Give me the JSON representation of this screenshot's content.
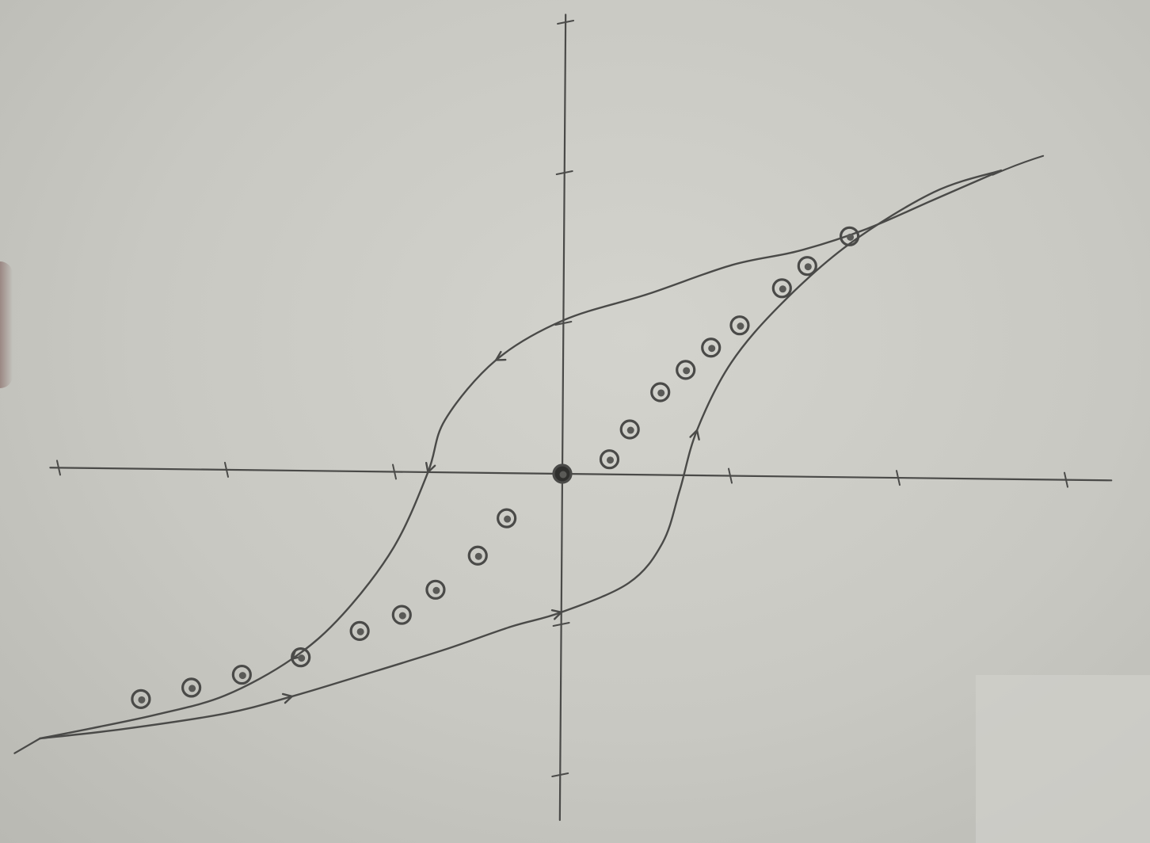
{
  "chart_data": {
    "type": "line",
    "title": "",
    "xlabel": "",
    "ylabel": "",
    "xlim": [
      -3,
      3
    ],
    "ylim": [
      -2,
      3
    ],
    "grid": false,
    "x_ticks": [
      -3,
      -2,
      -1,
      1,
      2,
      3
    ],
    "y_ticks": [
      -2,
      -1,
      1,
      2,
      3
    ],
    "series": [
      {
        "kind": "hysteresis-loop-upper-branch",
        "x": [
          2.6,
          2.2,
          1.8,
          1.4,
          1.0,
          0.5,
          0.0,
          -0.4,
          -0.7,
          -0.8,
          -1.0,
          -1.3,
          -1.6,
          -2.0,
          -2.4,
          -2.8,
          -3.1
        ],
        "y": [
          2.05,
          1.85,
          1.65,
          1.5,
          1.4,
          1.2,
          1.02,
          0.75,
          0.35,
          0.0,
          -0.5,
          -0.95,
          -1.25,
          -1.5,
          -1.63,
          -1.73,
          -1.8
        ],
        "arrow_marks": [
          7,
          9,
          12
        ]
      },
      {
        "kind": "hysteresis-loop-lower-branch",
        "x": [
          -3.1,
          -2.6,
          -2.0,
          -1.6,
          -1.2,
          -0.7,
          -0.3,
          0.0,
          0.4,
          0.6,
          0.7,
          0.8,
          1.0,
          1.3,
          1.7,
          2.2,
          2.6
        ],
        "y": [
          -1.8,
          -1.73,
          -1.62,
          -1.5,
          -1.36,
          -1.18,
          -1.02,
          -0.92,
          -0.72,
          -0.45,
          -0.1,
          0.3,
          0.75,
          1.15,
          1.55,
          1.9,
          2.05
        ],
        "arrow_marks": [
          3,
          7,
          11
        ]
      },
      {
        "kind": "initial-magnetization-points",
        "marker": "circle",
        "x": [
          -2.5,
          -2.2,
          -1.9,
          -1.55,
          -1.2,
          -0.95,
          -0.75,
          -0.5,
          -0.33,
          0.0,
          0.28,
          0.4,
          0.58,
          0.73,
          0.88,
          1.05,
          1.3,
          1.45,
          1.7
        ],
        "y": [
          -1.53,
          -1.45,
          -1.36,
          -1.24,
          -1.06,
          -0.95,
          -0.78,
          -0.55,
          -0.3,
          0.0,
          0.1,
          0.3,
          0.55,
          0.7,
          0.85,
          1.0,
          1.25,
          1.4,
          1.6
        ]
      }
    ]
  }
}
